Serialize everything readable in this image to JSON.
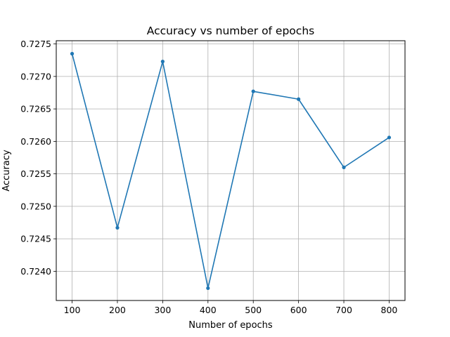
{
  "chart_data": {
    "type": "line",
    "title": "Accuracy vs number of epochs",
    "xlabel": "Number of epochs",
    "ylabel": "Accuracy",
    "x": [
      100,
      200,
      300,
      400,
      500,
      600,
      700,
      800
    ],
    "series": [
      {
        "values": [
          0.72735,
          0.72467,
          0.72723,
          0.72374,
          0.72677,
          0.72665,
          0.7256,
          0.72606
        ],
        "color": "#1f77b4",
        "marker": "circle"
      }
    ],
    "xlim": [
      65,
      835
    ],
    "ylim": [
      0.72355,
      0.72755
    ],
    "xticks": [
      100,
      200,
      300,
      400,
      500,
      600,
      700,
      800
    ],
    "yticks": [
      0.724,
      0.7245,
      0.725,
      0.7255,
      0.726,
      0.7265,
      0.727,
      0.7275
    ],
    "xtick_labels": [
      "100",
      "200",
      "300",
      "400",
      "500",
      "600",
      "700",
      "800"
    ],
    "ytick_labels": [
      "0.7240",
      "0.7245",
      "0.7250",
      "0.7255",
      "0.7260",
      "0.7265",
      "0.7270",
      "0.7275"
    ],
    "grid": true,
    "legend": "none"
  }
}
